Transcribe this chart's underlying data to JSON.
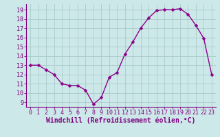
{
  "x": [
    0,
    1,
    2,
    3,
    4,
    5,
    6,
    7,
    8,
    9,
    10,
    11,
    12,
    13,
    14,
    15,
    16,
    17,
    18,
    19,
    20,
    21,
    22,
    23
  ],
  "y": [
    13,
    13,
    12.5,
    12,
    11,
    10.8,
    10.8,
    10.3,
    8.8,
    9.5,
    11.7,
    12.2,
    14.2,
    15.5,
    17,
    18.1,
    18.9,
    19.0,
    19.0,
    19.1,
    18.5,
    17.3,
    15.9,
    12
  ],
  "line_color": "#8b008b",
  "marker": "D",
  "marker_size": 2.5,
  "background_color": "#cce8e8",
  "grid_color": "#aacccc",
  "xlabel": "Windchill (Refroidissement éolien,°C)",
  "ylabel": "",
  "ylim": [
    8.5,
    19.6
  ],
  "xlim": [
    -0.5,
    23.5
  ],
  "yticks": [
    9,
    10,
    11,
    12,
    13,
    14,
    15,
    16,
    17,
    18,
    19
  ],
  "xticks": [
    0,
    1,
    2,
    3,
    4,
    5,
    6,
    7,
    8,
    9,
    10,
    11,
    12,
    13,
    14,
    15,
    16,
    17,
    18,
    19,
    20,
    21,
    22,
    23
  ],
  "tick_label_fontsize": 6,
  "xlabel_fontsize": 7,
  "line_width": 1.0,
  "spine_color": "#800080",
  "tick_color": "#800080",
  "text_color": "#800080"
}
